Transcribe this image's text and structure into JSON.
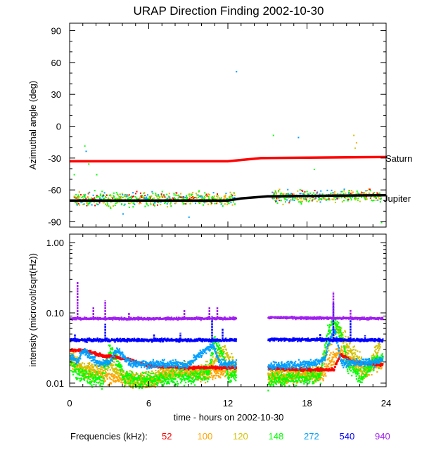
{
  "title": "URAP Direction Finding  2002-10-30",
  "chart_data": {
    "type": "scatter",
    "title": "URAP Direction Finding  2002-10-30",
    "xlabel": "time - hours on 2002-10-30",
    "xlim": [
      0,
      24
    ],
    "xticks": [
      "0",
      "6",
      "12",
      "18",
      "24"
    ],
    "legend": {
      "label": "Frequencies (kHz):",
      "placement": "bottom",
      "entries": [
        {
          "name": "52",
          "color": "#ff0000"
        },
        {
          "name": "100",
          "color": "#ffa500"
        },
        {
          "name": "120",
          "color": "#d2c200"
        },
        {
          "name": "148",
          "color": "#00ff00"
        },
        {
          "name": "272",
          "color": "#00a0ff"
        },
        {
          "name": "540",
          "color": "#0000ff"
        },
        {
          "name": "940",
          "color": "#a020f0"
        }
      ]
    },
    "panels": [
      {
        "name": "azimuth",
        "ylabel": "Azimuthal angle (deg)",
        "ylim": [
          -95,
          97
        ],
        "yticks": [
          "90",
          "60",
          "30",
          "0",
          "-30",
          "-60",
          "-90"
        ],
        "reference_lines": [
          {
            "name": "Saturn",
            "color": "#ff0000",
            "points": [
              [
                0,
                -33
              ],
              [
                12,
                -33
              ],
              [
                14.5,
                -30
              ],
              [
                24,
                -29
              ]
            ]
          },
          {
            "name": "Jupiter",
            "color": "#000000",
            "points": [
              [
                0,
                -70
              ],
              [
                12,
                -70
              ],
              [
                13,
                -68
              ],
              [
                15,
                -66
              ],
              [
                24,
                -65
              ]
            ]
          }
        ],
        "clouds": [
          {
            "range": [
              0.3,
              12.5
            ],
            "center_offset": 2,
            "spread": 9
          },
          {
            "range": [
              15.3,
              23.6
            ],
            "center_offset": 0,
            "spread": 8
          }
        ],
        "outliers": [
          [
            1.1,
            -18,
            "148"
          ],
          [
            1.2,
            -23,
            "272"
          ],
          [
            1.4,
            -35,
            "148"
          ],
          [
            0.3,
            -45,
            "148"
          ],
          [
            12.6,
            52,
            "272"
          ],
          [
            15.4,
            -8,
            "148"
          ],
          [
            17.3,
            -10,
            "272"
          ],
          [
            21.5,
            -8,
            "120"
          ],
          [
            21.7,
            -15,
            "100"
          ],
          [
            21.6,
            -20,
            "120"
          ],
          [
            18.5,
            -40,
            "148"
          ],
          [
            2.0,
            -45,
            "148"
          ],
          [
            4.0,
            -82,
            "272"
          ],
          [
            9.0,
            -85,
            "272"
          ],
          [
            23.6,
            -90,
            "148"
          ]
        ]
      },
      {
        "name": "intensity",
        "ylabel": "intensity (microvolt/sqrt(Hz))",
        "scale": "log",
        "ylim": [
          0.0089,
          1.32
        ],
        "yticks": [
          "1.00",
          "0.10",
          "0.01"
        ],
        "series": [
          {
            "name": "940",
            "noise": 0.03,
            "segments": [
              [
                [
                  0,
                  0.085
                ],
                [
                  12.6,
                  0.085
                ]
              ],
              [
                [
                  15,
                  0.088
                ],
                [
                  23.7,
                  0.085
                ]
              ]
            ],
            "spikes": [
              [
                0.6,
                0.28
              ],
              [
                1.8,
                0.12
              ],
              [
                2.7,
                0.15
              ],
              [
                4.5,
                0.1
              ],
              [
                8.7,
                0.11
              ],
              [
                10.6,
                0.12
              ],
              [
                11.2,
                0.12
              ],
              [
                20,
                0.2
              ],
              [
                21.3,
                0.11
              ]
            ]
          },
          {
            "name": "540",
            "noise": 0.04,
            "segments": [
              [
                [
                  0,
                  0.042
                ],
                [
                  12.6,
                  0.042
                ]
              ],
              [
                [
                  15,
                  0.043
                ],
                [
                  23.7,
                  0.042
                ]
              ]
            ],
            "spikes": [
              [
                0.4,
                0.05
              ],
              [
                2.7,
                0.07
              ],
              [
                6.4,
                0.05
              ],
              [
                8.4,
                0.052
              ],
              [
                10.8,
                0.09
              ],
              [
                11.6,
                0.06
              ],
              [
                19,
                0.05
              ],
              [
                20,
                0.14
              ],
              [
                21.3,
                0.08
              ],
              [
                22.4,
                0.048
              ]
            ]
          },
          {
            "name": "272",
            "noise": 0.1,
            "segments": [
              [
                [
                  0,
                  0.025
                ],
                [
                  0.5,
                  0.02
                ],
                [
                  1,
                  0.03
                ],
                [
                  2,
                  0.02
                ],
                [
                  3,
                  0.02
                ],
                [
                  3.5,
                  0.03
                ],
                [
                  4.5,
                  0.02
                ],
                [
                  6,
                  0.019
                ],
                [
                  9,
                  0.019
                ],
                [
                  10.8,
                  0.035
                ],
                [
                  11.3,
                  0.02
                ],
                [
                  12.6,
                  0.019
                ]
              ],
              [
                [
                  15,
                  0.018
                ],
                [
                  18,
                  0.019
                ],
                [
                  19.3,
                  0.022
                ],
                [
                  20,
                  0.06
                ],
                [
                  20.5,
                  0.02
                ],
                [
                  23,
                  0.02
                ],
                [
                  23.7,
                  0.022
                ]
              ]
            ],
            "spikes": []
          },
          {
            "name": "52",
            "noise": 0.04,
            "segments": [
              [
                [
                  0,
                  0.03
                ],
                [
                  1,
                  0.03
                ],
                [
                  2.5,
                  0.025
                ],
                [
                  3.5,
                  0.024
                ],
                [
                  4.5,
                  0.022
                ],
                [
                  6,
                  0.018
                ],
                [
                  9,
                  0.017
                ],
                [
                  12.6,
                  0.017
                ]
              ],
              [
                [
                  15,
                  0.017
                ],
                [
                  17,
                  0.016
                ],
                [
                  20,
                  0.016
                ],
                [
                  20.5,
                  0.026
                ],
                [
                  21.5,
                  0.02
                ],
                [
                  23.7,
                  0.019
                ]
              ]
            ],
            "spikes": []
          },
          {
            "name": "148",
            "noise": 0.2,
            "segments": [
              [
                [
                  0,
                  0.02
                ],
                [
                  0.5,
                  0.014
                ],
                [
                  1.5,
                  0.012
                ],
                [
                  2.5,
                  0.011
                ],
                [
                  3,
                  0.03
                ],
                [
                  4,
                  0.013
                ],
                [
                  5,
                  0.011
                ],
                [
                  7,
                  0.012
                ],
                [
                  9,
                  0.012
                ],
                [
                  10.5,
                  0.015
                ],
                [
                  11,
                  0.04
                ],
                [
                  12,
                  0.012
                ],
                [
                  12.6,
                  0.014
                ]
              ],
              [
                [
                  15,
                  0.011
                ],
                [
                  17,
                  0.012
                ],
                [
                  19,
                  0.013
                ],
                [
                  20,
                  0.08
                ],
                [
                  21,
                  0.02
                ],
                [
                  22,
                  0.012
                ],
                [
                  23,
                  0.02
                ],
                [
                  23.7,
                  0.025
                ]
              ]
            ],
            "spikes": []
          },
          {
            "name": "120",
            "noise": 0.2,
            "segments": [
              [
                [
                  0,
                  0.025
                ],
                [
                  1,
                  0.016
                ],
                [
                  2,
                  0.015
                ],
                [
                  3,
                  0.02
                ],
                [
                  4,
                  0.012
                ],
                [
                  5.5,
                  0.011
                ],
                [
                  7,
                  0.014
                ],
                [
                  9,
                  0.016
                ],
                [
                  10.5,
                  0.015
                ],
                [
                  11.5,
                  0.03
                ],
                [
                  12.6,
                  0.016
                ]
              ],
              [
                [
                  15,
                  0.013
                ],
                [
                  17,
                  0.015
                ],
                [
                  19,
                  0.014
                ],
                [
                  20.2,
                  0.06
                ],
                [
                  21.5,
                  0.025
                ],
                [
                  22.5,
                  0.015
                ],
                [
                  23.5,
                  0.035
                ]
              ]
            ],
            "spikes": []
          },
          {
            "name": "100",
            "noise": 0.2,
            "segments": [
              [
                [
                  0,
                  0.022
                ],
                [
                  1,
                  0.015
                ],
                [
                  2.5,
                  0.013
                ],
                [
                  4,
                  0.012
                ],
                [
                  6,
                  0.011
                ],
                [
                  8,
                  0.016
                ],
                [
                  10,
                  0.014
                ],
                [
                  12.6,
                  0.015
                ]
              ],
              [
                [
                  15,
                  0.012
                ],
                [
                  17,
                  0.013
                ],
                [
                  19,
                  0.013
                ],
                [
                  20.5,
                  0.03
                ],
                [
                  22,
                  0.015
                ],
                [
                  23.7,
                  0.02
                ]
              ]
            ],
            "spikes": []
          }
        ]
      }
    ]
  }
}
